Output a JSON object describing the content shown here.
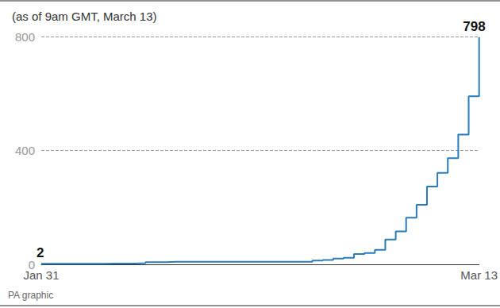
{
  "chart_data": {
    "type": "line",
    "title": "(as of 9am GMT, March 13)",
    "caption": "PA graphic",
    "categories": [
      "Jan 31",
      null,
      null,
      null,
      null,
      null,
      null,
      null,
      null,
      null,
      null,
      null,
      null,
      null,
      null,
      null,
      null,
      null,
      null,
      null,
      null,
      null,
      null,
      null,
      null,
      null,
      null,
      null,
      null,
      null,
      null,
      null,
      null,
      null,
      null,
      null,
      null,
      null,
      null,
      null,
      null,
      null,
      "Mar 13"
    ],
    "values": [
      2,
      2,
      2,
      2,
      2,
      2,
      3,
      3,
      3,
      4,
      8,
      8,
      9,
      9,
      9,
      9,
      9,
      9,
      9,
      9,
      9,
      9,
      9,
      9,
      9,
      9,
      13,
      15,
      20,
      23,
      36,
      40,
      51,
      87,
      116,
      164,
      209,
      273,
      321,
      373,
      456,
      590,
      798
    ],
    "color": "#2b7bb9",
    "line_style": "step",
    "ylim": [
      0,
      800
    ],
    "yticks": [
      0,
      400,
      800
    ],
    "grid": true,
    "annotations": [
      {
        "x": "Jan 31",
        "y": 2,
        "text": "2"
      },
      {
        "x": "Mar 13",
        "y": 798,
        "text": "798"
      }
    ]
  }
}
